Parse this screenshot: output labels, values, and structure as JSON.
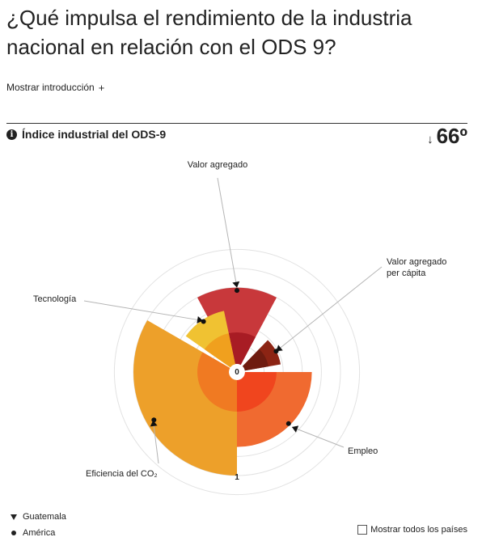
{
  "page": {
    "title": "¿Qué impulsa el rendimiento de la industria nacional en relación con el ODS 9?",
    "intro_toggle": "Mostrar introducción",
    "intro_toggle_symbol": "+",
    "section_title": "Índice industrial del ODS-9",
    "info_symbol": "i",
    "rank_arrow": "↓",
    "rank_value": "66º",
    "show_all_label": "Mostrar todos los países"
  },
  "legend": [
    {
      "label": "Guatemala",
      "marker": "triangle-down"
    },
    {
      "label": "América",
      "marker": "circle"
    }
  ],
  "chart_data": {
    "type": "radial-bar",
    "title": "Índice industrial del ODS-9",
    "axis_labels": {
      "center": "0",
      "outer": "1"
    },
    "rlim": [
      0,
      1
    ],
    "grid": true,
    "categories": [
      {
        "name": "Valor agregado",
        "label_lines": [
          "Valor agregado"
        ],
        "color": "#c8383b",
        "inner_color": "#a81c24",
        "country_value": 0.8,
        "inner_value": 0.33,
        "guatemala_marker": 0.8,
        "america_marker": 0.77
      },
      {
        "name": "Valor agregado per cápita",
        "label_lines": [
          "Valor agregado",
          "per cápita"
        ],
        "color": "#8c2414",
        "inner_color": "#6e1c10",
        "country_value": 0.38,
        "inner_value": 0.25,
        "guatemala_marker": 0.38,
        "america_marker": 0.38
      },
      {
        "name": "Empleo",
        "label_lines": [
          "Empleo"
        ],
        "color": "#f06a30",
        "inner_color": "#f0451e",
        "country_value": 0.7,
        "inner_value": 0.33,
        "guatemala_marker": 0.73,
        "america_marker": 0.68
      },
      {
        "name": "Eficiencia del CO2",
        "label_lines": [
          "Eficiencia del CO₂"
        ],
        "color": "#eda02a",
        "inner_color": "#f07a22",
        "country_value": 1.0,
        "inner_value": 0.33,
        "guatemala_marker": 0.93,
        "america_marker": 0.92
      },
      {
        "name": "Tecnología",
        "label_lines": [
          "Tecnología"
        ],
        "color": "#f0c232",
        "inner_color": "#f0a01e",
        "country_value": 0.57,
        "inner_value": 0.33,
        "guatemala_marker": 0.56,
        "america_marker": 0.55
      }
    ],
    "series": [
      {
        "name": "Guatemala",
        "marker": "triangle-down"
      },
      {
        "name": "América",
        "marker": "circle"
      }
    ]
  }
}
